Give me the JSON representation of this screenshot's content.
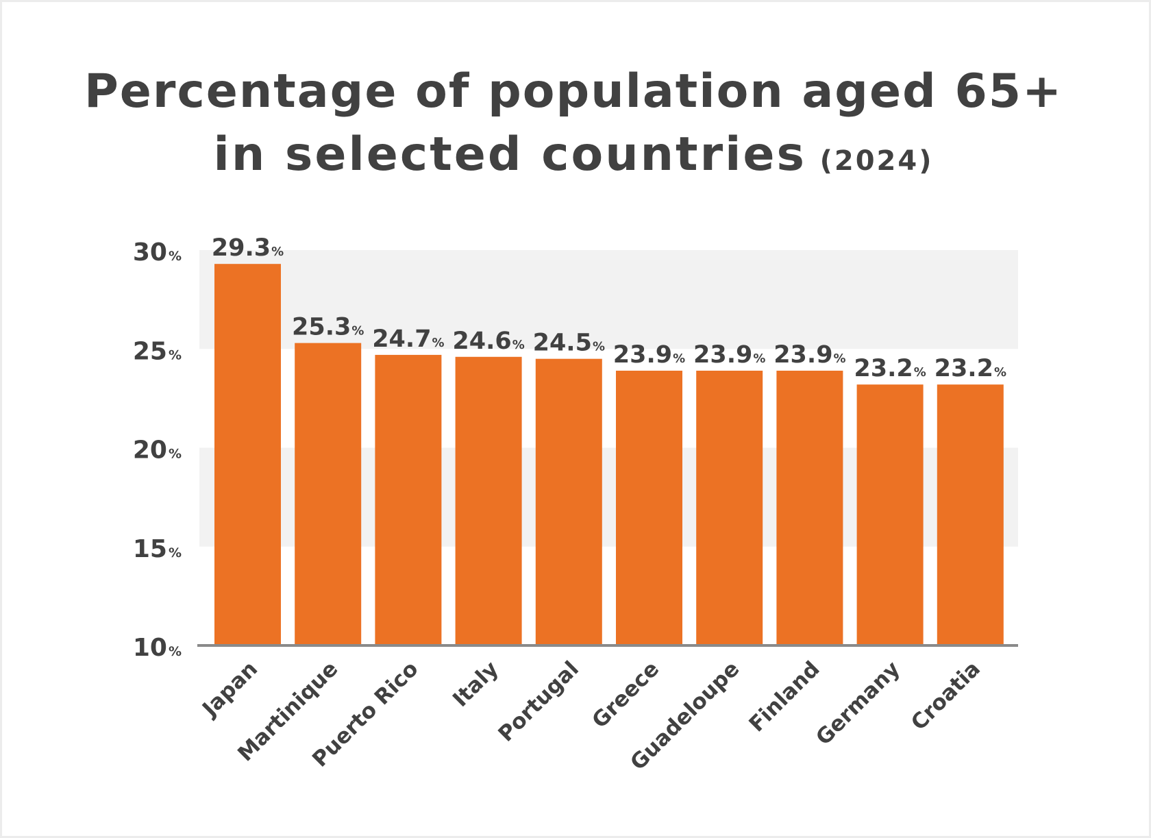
{
  "chart_data": {
    "type": "bar",
    "title_line1": "Percentage of population aged 65+",
    "title_line2": "in selected countries",
    "title_year": "(2024)",
    "xlabel": "",
    "ylabel": "",
    "ylim": [
      10,
      30
    ],
    "yticks": [
      {
        "value": 30,
        "num": "30",
        "unit": "%"
      },
      {
        "value": 25,
        "num": "25",
        "unit": "%"
      },
      {
        "value": 20,
        "num": "20",
        "unit": "%"
      },
      {
        "value": 15,
        "num": "15",
        "unit": "%"
      },
      {
        "value": 10,
        "num": "10",
        "unit": "%"
      }
    ],
    "value_unit": "%",
    "categories": [
      "Japan",
      "Martinique",
      "Puerto Rico",
      "Italy",
      "Portugal",
      "Greece",
      "Guadeloupe",
      "Finland",
      "Germany",
      "Croatia"
    ],
    "values": [
      29.3,
      25.3,
      24.7,
      24.6,
      24.5,
      23.9,
      23.9,
      23.9,
      23.2,
      23.2
    ],
    "value_labels": [
      "29.3",
      "25.3",
      "24.7",
      "24.6",
      "24.5",
      "23.9",
      "23.9",
      "23.9",
      "23.2",
      "23.2"
    ],
    "grid": "alternating horizontal bands",
    "legend": "none",
    "colors": {
      "bar": "#ec7224",
      "band": "#f2f2f2",
      "baseline": "#8a8a8a",
      "text": "#414141",
      "frame": "#ececec"
    }
  }
}
